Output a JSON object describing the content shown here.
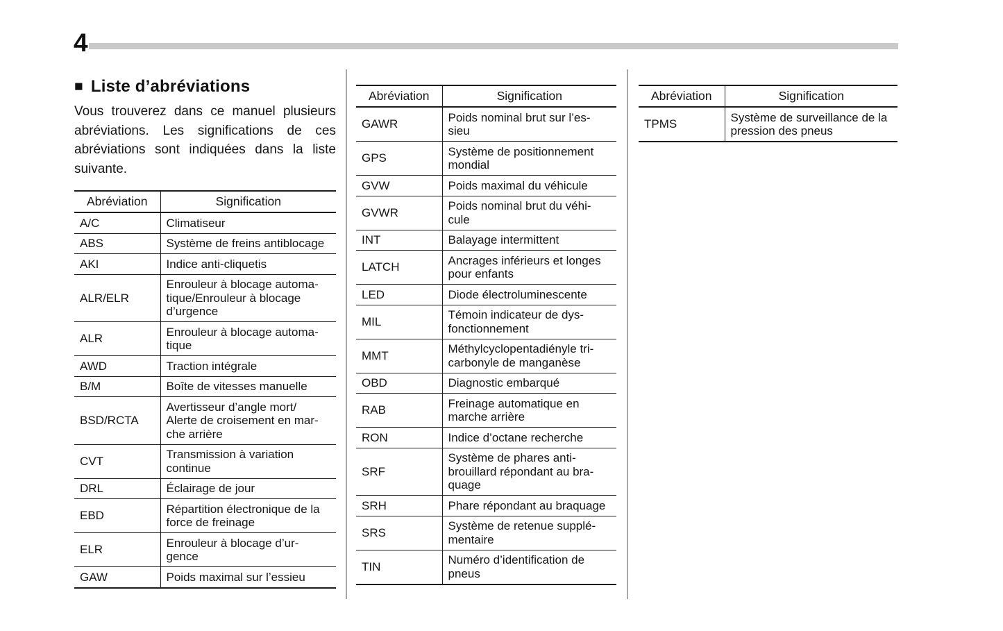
{
  "page": {
    "number": "4"
  },
  "intro": {
    "heading_marker": "■",
    "heading": "Liste d’abréviations",
    "paragraph_lines": [
      "Vous trouverez dans ce manuel plusieurs",
      "abréviations. Les significations de ces",
      "abréviations sont indiquées dans la liste",
      "suivante."
    ]
  },
  "table_headers": {
    "abbreviation": "Abréviation",
    "meaning": "Signification"
  },
  "tables": [
    {
      "rows": [
        {
          "abbr": "A/C",
          "meaning": "Climatiseur"
        },
        {
          "abbr": "ABS",
          "meaning": "Système de freins antiblocage"
        },
        {
          "abbr": "AKI",
          "meaning": "Indice anti-cliquetis"
        },
        {
          "abbr": "ALR/ELR",
          "meaning": "Enrouleur à blocage automa-\ntique/Enrouleur à blocage\nd’urgence"
        },
        {
          "abbr": "ALR",
          "meaning": "Enrouleur à blocage automa-\ntique"
        },
        {
          "abbr": "AWD",
          "meaning": "Traction intégrale"
        },
        {
          "abbr": "B/M",
          "meaning": "Boîte de vitesses manuelle"
        },
        {
          "abbr": "BSD/RCTA",
          "meaning": "Avertisseur d’angle mort/\nAlerte de croisement en mar-\nche arrière"
        },
        {
          "abbr": "CVT",
          "meaning": "Transmission à variation\ncontinue"
        },
        {
          "abbr": "DRL",
          "meaning": "Éclairage de jour"
        },
        {
          "abbr": "EBD",
          "meaning": "Répartition électronique de la\nforce de freinage"
        },
        {
          "abbr": "ELR",
          "meaning": "Enrouleur à blocage d’ur-\ngence"
        },
        {
          "abbr": "GAW",
          "meaning": "Poids maximal sur l’essieu"
        }
      ]
    },
    {
      "rows": [
        {
          "abbr": "GAWR",
          "meaning": "Poids nominal brut sur l’es-\nsieu"
        },
        {
          "abbr": "GPS",
          "meaning": "Système de positionnement\nmondial"
        },
        {
          "abbr": "GVW",
          "meaning": "Poids maximal du véhicule"
        },
        {
          "abbr": "GVWR",
          "meaning": "Poids nominal brut du véhi-\ncule"
        },
        {
          "abbr": "INT",
          "meaning": "Balayage intermittent"
        },
        {
          "abbr": "LATCH",
          "meaning": "Ancrages inférieurs et longes\npour enfants"
        },
        {
          "abbr": "LED",
          "meaning": "Diode électroluminescente"
        },
        {
          "abbr": "MIL",
          "meaning": "Témoin indicateur de dys-\nfonctionnement"
        },
        {
          "abbr": "MMT",
          "meaning": "Méthylcyclopentadiényle tri-\ncarbonyle de manganèse"
        },
        {
          "abbr": "OBD",
          "meaning": "Diagnostic embarqué"
        },
        {
          "abbr": "RAB",
          "meaning": "Freinage automatique en\nmarche arrière"
        },
        {
          "abbr": "RON",
          "meaning": "Indice d’octane recherche"
        },
        {
          "abbr": "SRF",
          "meaning": "Système de phares anti-\nbrouillard répondant au bra-\nquage"
        },
        {
          "abbr": "SRH",
          "meaning": "Phare répondant au braquage"
        },
        {
          "abbr": "SRS",
          "meaning": "Système de retenue supplé-\nmentaire"
        },
        {
          "abbr": "TIN",
          "meaning": "Numéro d’identification de\npneus"
        }
      ]
    },
    {
      "rows": [
        {
          "abbr": "TPMS",
          "meaning": "Système de surveillance de la\npression des pneus"
        }
      ]
    }
  ]
}
